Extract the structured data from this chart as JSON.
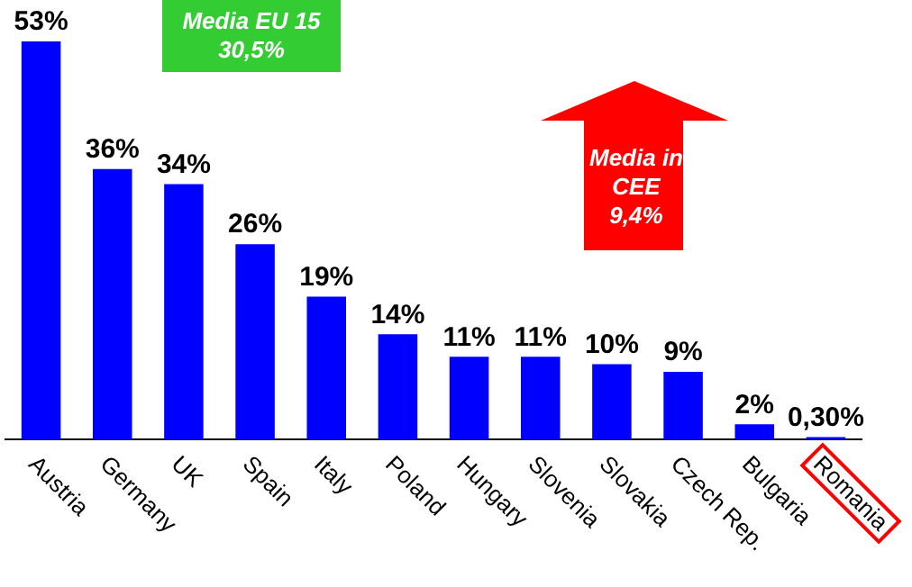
{
  "chart_data": {
    "type": "bar",
    "categories": [
      "Austria",
      "Germany",
      "UK",
      "Spain",
      "Italy",
      "Poland",
      "Hungary",
      "Slovenia",
      "Slovakia",
      "Czech Rep.",
      "Bulgaria",
      "Romania"
    ],
    "values": [
      53,
      36,
      34,
      26,
      19,
      14,
      11,
      11,
      10,
      9,
      2,
      0.3
    ],
    "value_labels": [
      "53%",
      "36%",
      "34%",
      "26%",
      "19%",
      "14%",
      "11%",
      "11%",
      "10%",
      "9%",
      "2%",
      "0,30%"
    ],
    "color": "#0000ff",
    "annotations": [
      "Media EU 15\n30,5%",
      "Media in\nCEE\n9,4%"
    ],
    "grid": false,
    "legend": false
  }
}
